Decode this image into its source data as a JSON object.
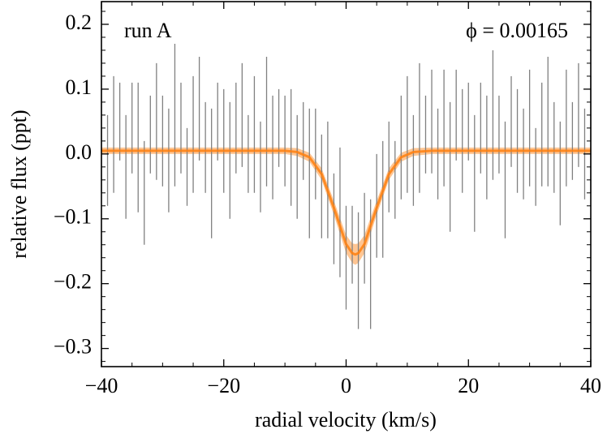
{
  "chart_data": {
    "type": "errorbar",
    "xlabel": "radial velocity (km/s)",
    "ylabel": "relative flux (ppt)",
    "annotations": [
      {
        "text": "run A"
      },
      {
        "text": "ϕ = 0.00165"
      }
    ],
    "xlim": [
      -40,
      40
    ],
    "ylim": [
      -0.328,
      0.235
    ],
    "xticks": [
      {
        "value": -40,
        "label": "−40"
      },
      {
        "value": -20,
        "label": "−20"
      },
      0,
      20,
      40
    ],
    "yticks": [
      {
        "value": -0.3,
        "label": "−0.3"
      },
      {
        "value": -0.2,
        "label": "−0.2"
      },
      {
        "value": -0.1,
        "label": "−0.1"
      },
      {
        "value": 0,
        "label": "0.0"
      },
      0.1,
      0.2
    ],
    "xminorticks": [
      -35,
      -30,
      -25,
      -15,
      -10,
      -5,
      5,
      10,
      15,
      25,
      30,
      35
    ],
    "yminorticks": [
      -0.32,
      -0.28,
      -0.26,
      -0.24,
      -0.22,
      -0.18,
      -0.16,
      -0.14,
      -0.12,
      -0.08,
      -0.06,
      -0.04,
      -0.02,
      0.02,
      0.04,
      0.06,
      0.08,
      0.12,
      0.14,
      0.16,
      0.18,
      0.22
    ],
    "errorbars": {
      "color": "#808080",
      "x": [
        -40,
        -39,
        -38,
        -37,
        -36,
        -35,
        -34,
        -33,
        -32,
        -31,
        -30,
        -29,
        -28,
        -27,
        -26,
        -25,
        -24,
        -23,
        -22,
        -21,
        -20,
        -19,
        -18,
        -17,
        -16,
        -15,
        -14,
        -13,
        -12,
        -11,
        -10,
        -9,
        -8,
        -7,
        -6,
        -5,
        -4,
        -3,
        -2,
        -1,
        0,
        1,
        2,
        3,
        4,
        5,
        6,
        7,
        8,
        9,
        10,
        11,
        12,
        13,
        14,
        15,
        16,
        17,
        18,
        19,
        20,
        21,
        22,
        23,
        24,
        25,
        26,
        27,
        28,
        29,
        30,
        31,
        32,
        33,
        34,
        35,
        36,
        37,
        38,
        39,
        40
      ],
      "values": [
        0.02,
        -0.01,
        0.03,
        0.05,
        -0.02,
        0.04,
        0.01,
        -0.06,
        0.03,
        0.05,
        0.02,
        -0.01,
        0.06,
        0.04,
        -0.02,
        0.03,
        0.07,
        0.01,
        -0.03,
        0.05,
        0.02,
        -0.01,
        0.04,
        0.06,
        0.0,
        0.03,
        -0.02,
        0.05,
        0.01,
        0.04,
        0.02,
        0.01,
        -0.02,
        0.02,
        -0.03,
        0.0,
        -0.05,
        -0.04,
        -0.1,
        -0.09,
        -0.16,
        -0.14,
        -0.18,
        -0.13,
        -0.17,
        -0.08,
        -0.07,
        -0.02,
        -0.04,
        0.01,
        0.03,
        -0.01,
        0.04,
        0.03,
        0.05,
        0.0,
        0.04,
        -0.02,
        0.06,
        0.02,
        0.05,
        -0.03,
        0.04,
        0.01,
        0.06,
        0.03,
        -0.04,
        0.05,
        0.02,
        0.0,
        0.04,
        -0.02,
        0.03,
        0.05,
        0.01,
        -0.03,
        0.04,
        0.02,
        0.06,
        0.0,
        0.03
      ],
      "errors": [
        0.08,
        0.07,
        0.09,
        0.06,
        0.08,
        0.07,
        0.1,
        0.08,
        0.06,
        0.09,
        0.07,
        0.08,
        0.11,
        0.07,
        0.06,
        0.09,
        0.08,
        0.07,
        0.1,
        0.06,
        0.08,
        0.09,
        0.07,
        0.08,
        0.06,
        0.09,
        0.07,
        0.1,
        0.08,
        0.06,
        0.07,
        0.09,
        0.08,
        0.06,
        0.1,
        0.07,
        0.08,
        0.09,
        0.07,
        0.1,
        0.08,
        0.06,
        0.09,
        0.07,
        0.1,
        0.08,
        0.09,
        0.07,
        0.06,
        0.08,
        0.09,
        0.07,
        0.1,
        0.06,
        0.08,
        0.07,
        0.09,
        0.1,
        0.07,
        0.08,
        0.06,
        0.09,
        0.07,
        0.08,
        0.1,
        0.06,
        0.09,
        0.07,
        0.08,
        0.07,
        0.09,
        0.06,
        0.08,
        0.1,
        0.07,
        0.08,
        0.09,
        0.06,
        0.08,
        0.07,
        0.09
      ]
    },
    "model": {
      "color": "#ff7f0e",
      "x": [
        -40,
        -12,
        -10,
        -8,
        -6,
        -4,
        -2,
        0,
        1,
        1.5,
        2,
        3,
        5,
        7,
        9,
        11,
        14,
        40
      ],
      "values": [
        0.005,
        0.005,
        0.005,
        0.003,
        -0.005,
        -0.031,
        -0.083,
        -0.139,
        -0.153,
        -0.155,
        -0.153,
        -0.139,
        -0.083,
        -0.031,
        -0.005,
        0.003,
        0.005,
        0.005
      ],
      "lower": [
        0.0,
        0.0,
        0.0,
        -0.003,
        -0.012,
        -0.04,
        -0.094,
        -0.153,
        -0.168,
        -0.171,
        -0.168,
        -0.153,
        -0.094,
        -0.04,
        -0.012,
        -0.003,
        0.0,
        0.0
      ],
      "upper": [
        0.01,
        0.01,
        0.01,
        0.009,
        0.002,
        -0.022,
        -0.072,
        -0.125,
        -0.138,
        -0.139,
        -0.138,
        -0.125,
        -0.072,
        -0.022,
        0.002,
        0.009,
        0.01,
        0.01
      ]
    }
  }
}
